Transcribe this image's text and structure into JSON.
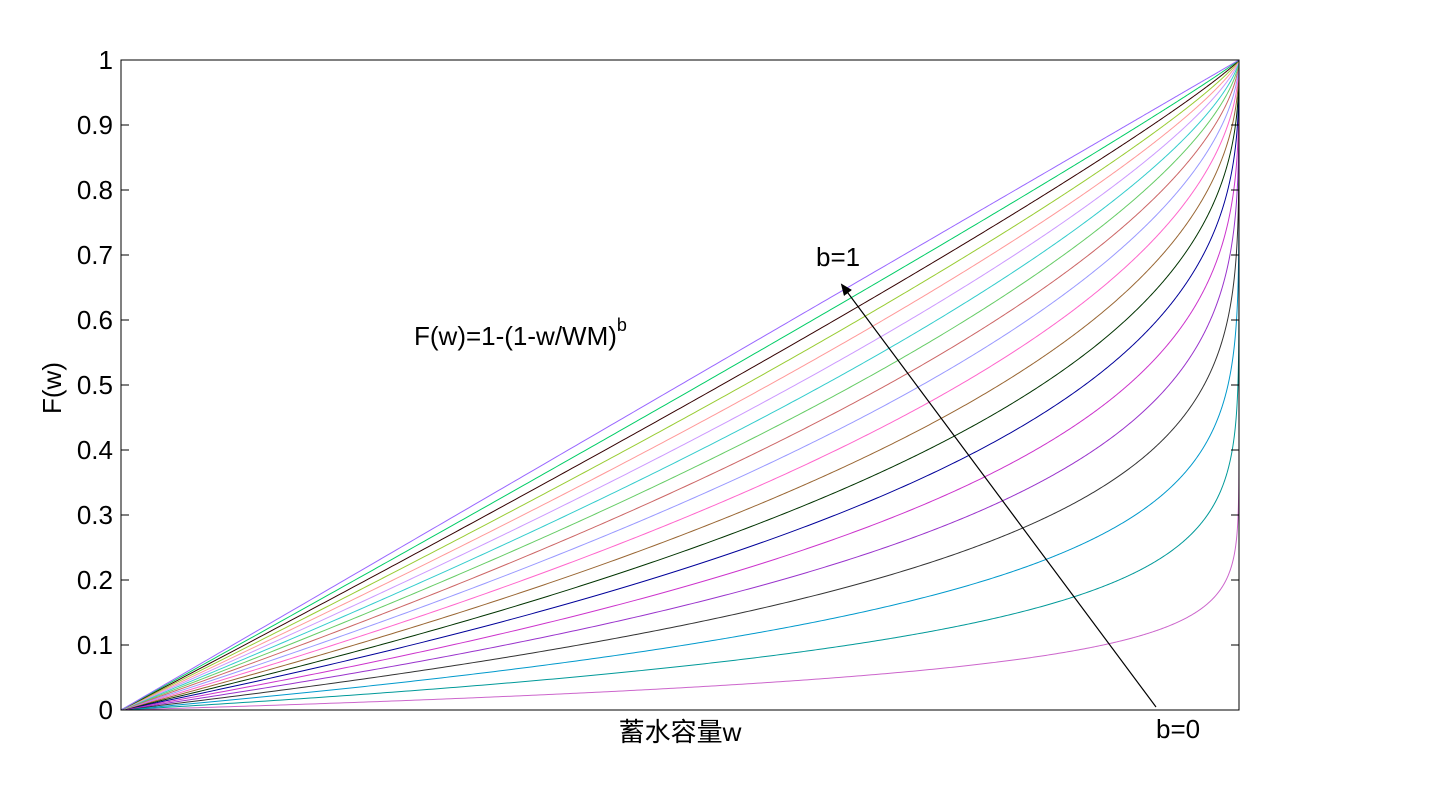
{
  "chart_data": {
    "type": "line",
    "title": "",
    "xlabel": "蓄水容量w",
    "ylabel": "F(w)",
    "xlim": [
      0,
      1
    ],
    "ylim": [
      0,
      1
    ],
    "yticks": [
      "0",
      "0.1",
      "0.2",
      "0.3",
      "0.4",
      "0.5",
      "0.6",
      "0.7",
      "0.8",
      "0.9",
      "1"
    ],
    "grid": false,
    "series_function": "F(w) = 1 - (1 - w)^b",
    "b_values": [
      0.05,
      0.1,
      0.15,
      0.2,
      0.25,
      0.3,
      0.35,
      0.4,
      0.45,
      0.5,
      0.55,
      0.6,
      0.65,
      0.7,
      0.75,
      0.8,
      0.85,
      0.9,
      0.95,
      1.0
    ],
    "series_colors": [
      "#cc66cc",
      "#009999",
      "#0099cc",
      "#333333",
      "#9933cc",
      "#cc33cc",
      "#000099",
      "#003300",
      "#996633",
      "#ff66cc",
      "#9999ff",
      "#cc6666",
      "#66cc66",
      "#33cccc",
      "#cc99ff",
      "#ff9999",
      "#99cc33",
      "#330000",
      "#00cc66",
      "#9966ff"
    ],
    "annotations": {
      "formula_main": "F(w)=1-(1-w/WM)",
      "formula_sup": "b",
      "b1_label": "b=1",
      "b0_label": "b=0"
    }
  }
}
